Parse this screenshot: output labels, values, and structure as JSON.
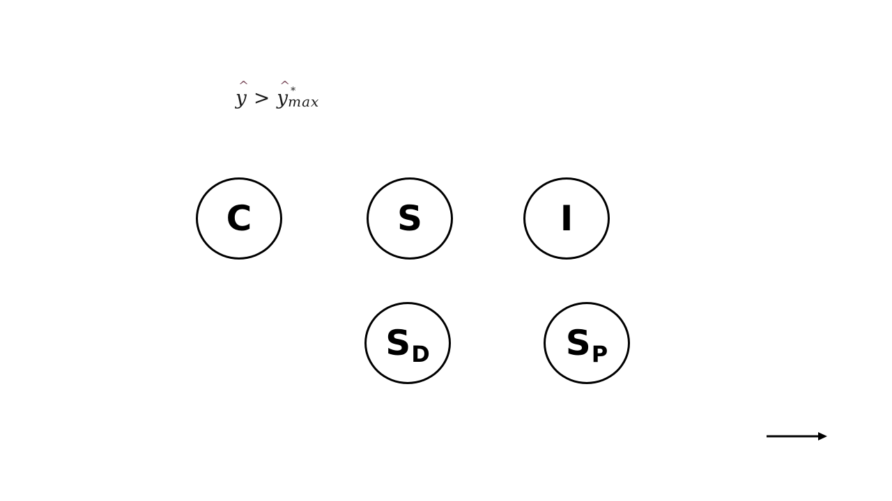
{
  "formula": {
    "lhs_var": "y",
    "lhs_hat": "^",
    "operator": ">",
    "rhs_var": "y",
    "rhs_hat": "^",
    "rhs_sup": "*",
    "rhs_sub": "max"
  },
  "nodes": {
    "c": {
      "label": "C",
      "sub": ""
    },
    "s": {
      "label": "S",
      "sub": ""
    },
    "i": {
      "label": "I",
      "sub": ""
    },
    "sd": {
      "label": "S",
      "sub": "D"
    },
    "sp": {
      "label": "S",
      "sub": "P"
    }
  },
  "colors": {
    "stroke": "#000000",
    "background": "#ffffff",
    "hat_accent": "#7a4a5a"
  },
  "icons": {
    "legend_arrow": "right-arrow-icon"
  }
}
